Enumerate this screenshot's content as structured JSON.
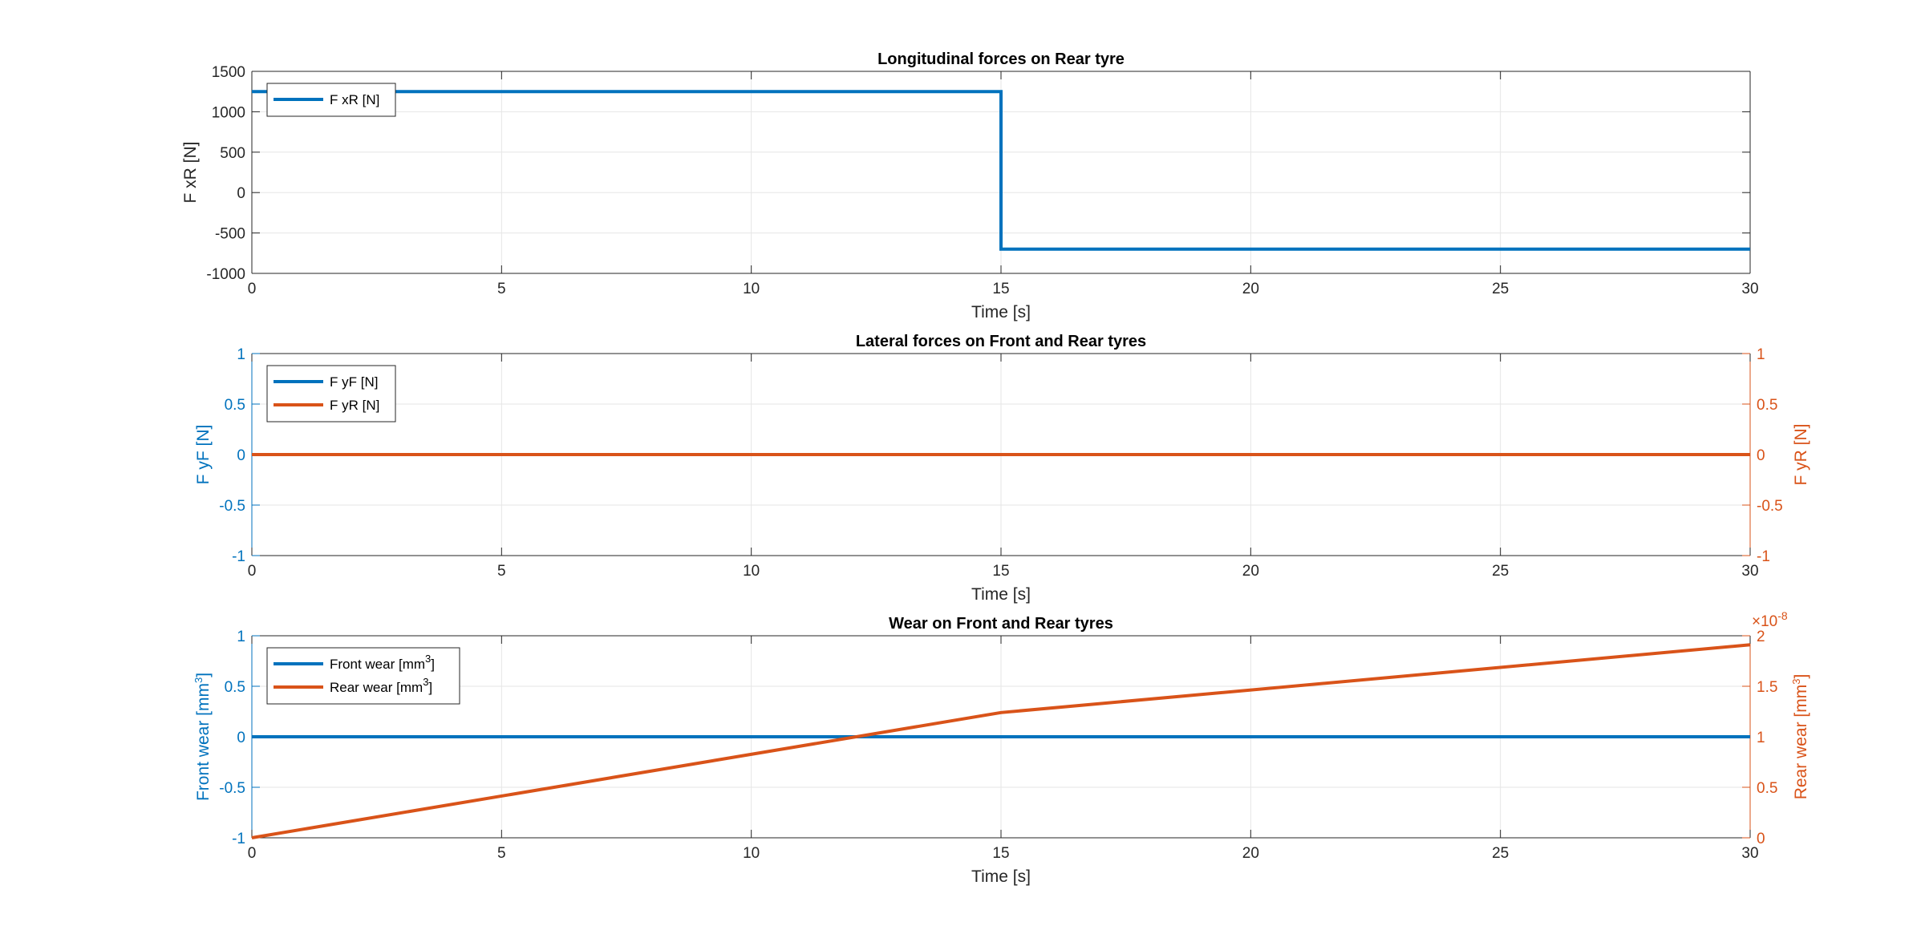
{
  "chart_data": [
    {
      "type": "line",
      "title": "Longitudinal forces on Rear tyre",
      "xlabel": "Time [s]",
      "ylabel": "F xR [N]",
      "xlim": [
        0,
        30
      ],
      "ylim": [
        -1000,
        1500
      ],
      "xticks": [
        "0",
        "5",
        "10",
        "15",
        "20",
        "25",
        "30"
      ],
      "yticks": [
        "-1000",
        "-500",
        "0",
        "500",
        "1000",
        "1500"
      ],
      "grid": true,
      "legend_position": "top-left",
      "series": [
        {
          "name": "F xR [N]",
          "color": "#0072BD",
          "x": [
            0,
            15,
            15,
            30
          ],
          "y": [
            1250,
            1250,
            -700,
            -700
          ]
        }
      ]
    },
    {
      "type": "line",
      "title": "Lateral forces on Front and Rear tyres",
      "xlabel": "Time [s]",
      "ylabel": "F yF [N]",
      "ylabel_right": "F yR [N]",
      "xlim": [
        0,
        30
      ],
      "ylim": [
        -1,
        1
      ],
      "ylim_right": [
        -1,
        1
      ],
      "xticks": [
        "0",
        "5",
        "10",
        "15",
        "20",
        "25",
        "30"
      ],
      "yticks": [
        "-1",
        "-0.5",
        "0",
        "0.5",
        "1"
      ],
      "yticks_right": [
        "-1",
        "-0.5",
        "0",
        "0.5",
        "1"
      ],
      "grid": true,
      "legend_position": "top-left",
      "series": [
        {
          "name": "F yF [N]",
          "color": "#0072BD",
          "axis": "left",
          "x": [
            0,
            30
          ],
          "y": [
            0,
            0
          ]
        },
        {
          "name": "F yR [N]",
          "color": "#D95319",
          "axis": "right",
          "x": [
            0,
            30
          ],
          "y": [
            0,
            0
          ]
        }
      ]
    },
    {
      "type": "line",
      "title": "Wear on Front and Rear tyres",
      "xlabel": "Time [s]",
      "ylabel": "Front wear [mm",
      "ylabel_sup": "3",
      "ylabel_close": "]",
      "ylabel_right": "Rear wear [mm",
      "ylabel_right_sup": "3",
      "ylabel_right_close": "]",
      "right_exponent_prefix": "×10",
      "right_exponent": "-8",
      "xlim": [
        0,
        30
      ],
      "ylim": [
        -1,
        1
      ],
      "ylim_right": [
        0,
        2
      ],
      "xticks": [
        "0",
        "5",
        "10",
        "15",
        "20",
        "25",
        "30"
      ],
      "yticks": [
        "-1",
        "-0.5",
        "0",
        "0.5",
        "1"
      ],
      "yticks_right": [
        "0",
        "0.5",
        "1",
        "1.5",
        "2"
      ],
      "grid": true,
      "legend_position": "top-left",
      "series": [
        {
          "name": "Front wear [mm",
          "name_sup": "3",
          "name_close": "]",
          "color": "#0072BD",
          "axis": "left",
          "x": [
            0,
            30
          ],
          "y": [
            0,
            0
          ]
        },
        {
          "name": "Rear wear [mm",
          "name_sup": "3",
          "name_close": "]",
          "color": "#D95319",
          "axis": "right",
          "x": [
            0,
            15,
            30
          ],
          "y": [
            0,
            1.24,
            1.91
          ]
        }
      ]
    }
  ]
}
